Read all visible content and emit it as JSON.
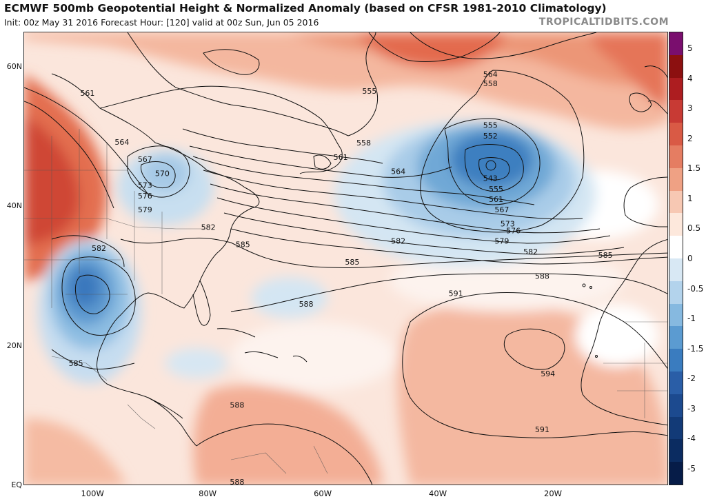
{
  "header": {
    "title": "ECMWF 500mb Geopotential Height & Normalized Anomaly (based on CFSR 1981-2010 Climatology)",
    "subtitle": "Init: 00z May 31 2016   Forecast Hour: [120]   valid at 00z Sun, Jun 05 2016",
    "brand": "TROPICALTIDBITS.COM"
  },
  "map": {
    "lon_range": [
      -112,
      0
    ],
    "lat_range": [
      0,
      65
    ],
    "lat_labels": [
      {
        "lat": 60,
        "text": "60N"
      },
      {
        "lat": 40,
        "text": "40N"
      },
      {
        "lat": 20,
        "text": "20N"
      },
      {
        "lat": 0,
        "text": "EQ"
      }
    ],
    "lon_labels": [
      {
        "lon": -100,
        "text": "100W"
      },
      {
        "lon": -80,
        "text": "80W"
      },
      {
        "lon": -60,
        "text": "60W"
      },
      {
        "lon": -40,
        "text": "40W"
      },
      {
        "lon": -20,
        "text": "20W"
      }
    ],
    "contour_labels": [
      {
        "lon": -31,
        "lat": 59,
        "text": "564"
      },
      {
        "lon": -31,
        "lat": 57.7,
        "text": "558"
      },
      {
        "lon": -52,
        "lat": 56.6,
        "text": "555"
      },
      {
        "lon": -31,
        "lat": 51.7,
        "text": "555"
      },
      {
        "lon": -31,
        "lat": 50.2,
        "text": "552"
      },
      {
        "lon": -101,
        "lat": 56.3,
        "text": "561"
      },
      {
        "lon": -95,
        "lat": 49.3,
        "text": "564"
      },
      {
        "lon": -91,
        "lat": 46.8,
        "text": "567"
      },
      {
        "lon": -88,
        "lat": 44.8,
        "text": "570"
      },
      {
        "lon": -53,
        "lat": 49.2,
        "text": "558"
      },
      {
        "lon": -57,
        "lat": 47.1,
        "text": "561"
      },
      {
        "lon": -47,
        "lat": 45.1,
        "text": "564"
      },
      {
        "lon": -91,
        "lat": 43.1,
        "text": "573"
      },
      {
        "lon": -91,
        "lat": 41.6,
        "text": "576"
      },
      {
        "lon": -91,
        "lat": 39.6,
        "text": "579"
      },
      {
        "lon": -80,
        "lat": 37.1,
        "text": "582"
      },
      {
        "lon": -74,
        "lat": 34.6,
        "text": "585"
      },
      {
        "lon": -47,
        "lat": 35.1,
        "text": "582"
      },
      {
        "lon": -31,
        "lat": 44.1,
        "text": "543"
      },
      {
        "lon": -30,
        "lat": 42.6,
        "text": "555"
      },
      {
        "lon": -30,
        "lat": 41.1,
        "text": "561"
      },
      {
        "lon": -29,
        "lat": 39.6,
        "text": "567"
      },
      {
        "lon": -28,
        "lat": 37.6,
        "text": "573"
      },
      {
        "lon": -27,
        "lat": 36.6,
        "text": "576"
      },
      {
        "lon": -29,
        "lat": 35.1,
        "text": "579"
      },
      {
        "lon": -24,
        "lat": 33.6,
        "text": "582"
      },
      {
        "lon": -11,
        "lat": 33.1,
        "text": "585"
      },
      {
        "lon": -55,
        "lat": 32.1,
        "text": "585"
      },
      {
        "lon": -99,
        "lat": 34.1,
        "text": "582"
      },
      {
        "lon": -22,
        "lat": 30.1,
        "text": "588"
      },
      {
        "lon": -63,
        "lat": 26.1,
        "text": "588"
      },
      {
        "lon": -37,
        "lat": 27.6,
        "text": "591"
      },
      {
        "lon": -21,
        "lat": 16.1,
        "text": "594"
      },
      {
        "lon": -103,
        "lat": 17.6,
        "text": "585"
      },
      {
        "lon": -75,
        "lat": 11.6,
        "text": "588"
      },
      {
        "lon": -22,
        "lat": 8.1,
        "text": "591"
      },
      {
        "lon": -75,
        "lat": 0.6,
        "text": "588"
      }
    ]
  },
  "colorbar": {
    "labels": [
      "5",
      "4",
      "3",
      "2",
      "1.5",
      "1",
      "0.5",
      "0",
      "-0.5",
      "-1",
      "-1.5",
      "-2",
      "-3",
      "-4",
      "-5"
    ],
    "colors": [
      "#7a0e6e",
      "#8c1010",
      "#ad1d20",
      "#c83a34",
      "#d95a45",
      "#e57d62",
      "#efa184",
      "#f7c8b3",
      "#fde8dc",
      "#ffffff",
      "#d8e8f4",
      "#b3d3ec",
      "#86b9e0",
      "#5b9bd1",
      "#3a7cbf",
      "#2a5ea7",
      "#1c4a8f",
      "#123a77",
      "#0b2c61",
      "#061c48"
    ]
  }
}
